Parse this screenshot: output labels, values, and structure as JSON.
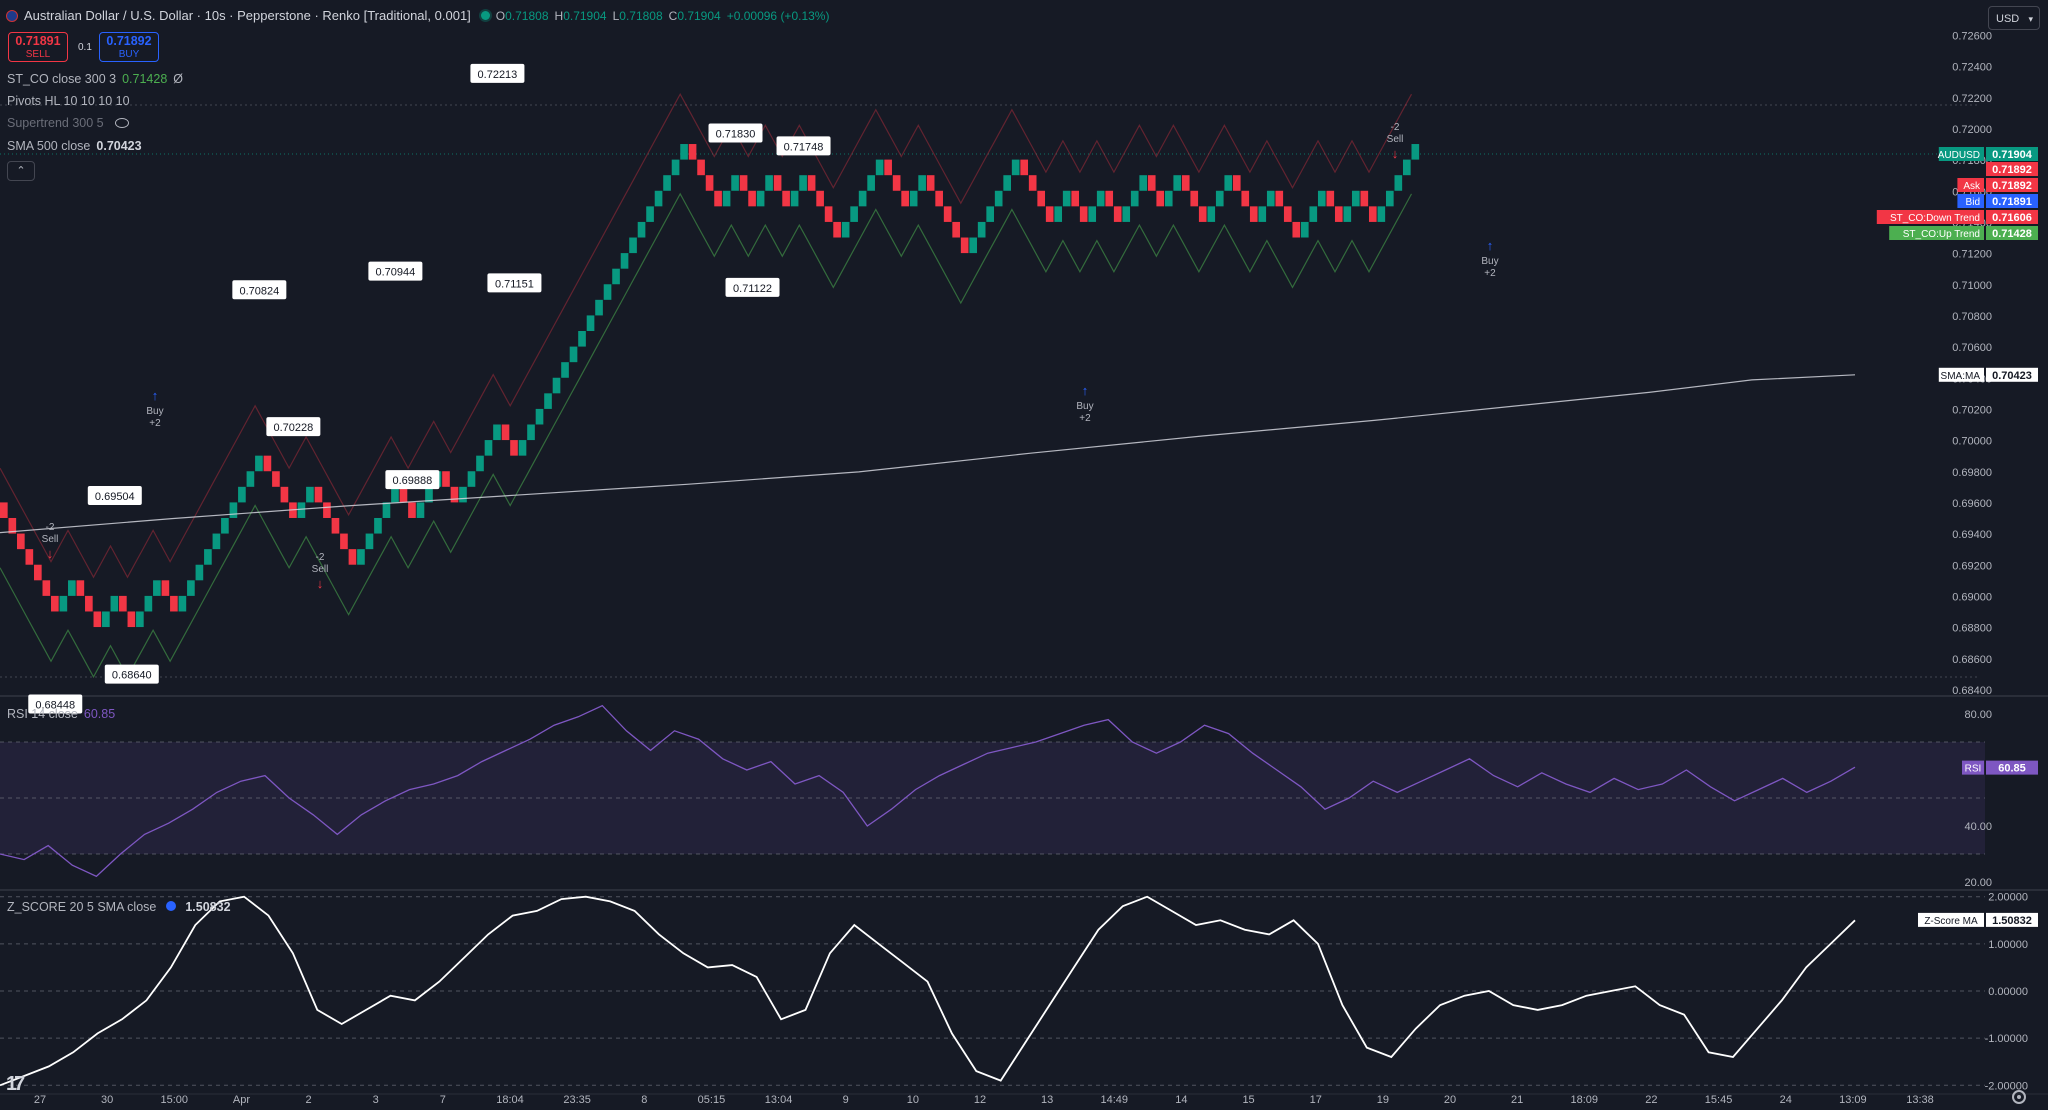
{
  "header": {
    "symbol_title": "Australian Dollar / U.S. Dollar · 10s · Pepperstone · Renko [Traditional, 0.001]",
    "ohlc": [
      {
        "key": "O",
        "value": "0.71808"
      },
      {
        "key": "H",
        "value": "0.71904"
      },
      {
        "key": "L",
        "value": "0.71808"
      },
      {
        "key": "C",
        "value": "0.71904"
      }
    ],
    "change": "+0.00096 (+0.13%)",
    "currency": "USD"
  },
  "trade": {
    "sell_price": "0.71891",
    "sell_label": "SELL",
    "quantity": "0.1",
    "buy_price": "0.71892",
    "buy_label": "BUY"
  },
  "indicators": {
    "st_co": {
      "name": "ST_CO close 300 3",
      "value": "0.71428",
      "extra": "Ø"
    },
    "pivots": {
      "name": "Pivots HL 10 10 10 10"
    },
    "supertrend": {
      "name": "Supertrend 300 5"
    },
    "sma": {
      "name": "SMA 500 close",
      "value": "0.70423"
    },
    "rsi": {
      "name": "RSI 14 close",
      "value": "60.85"
    },
    "zscore": {
      "name": "Z_SCORE 20 5 SMA close",
      "value": "1.50832"
    }
  },
  "colors": {
    "background": "#161a25",
    "bull": "#089981",
    "bear": "#f23645",
    "rsi_line": "#7e57c2",
    "sma_line": "#d1d4dc",
    "supertrend_up": "#4caf50",
    "supertrend_down": "#f23645"
  },
  "chart_data": [
    {
      "type": "renko",
      "title": "Australian Dollar / U.S. Dollar · 10s · Pepperstone · Renko [Traditional, 0.001]",
      "box_size": 0.001,
      "ylim": [
        0.684,
        0.727
      ],
      "y_ticks": [
        "0.72600",
        "0.72400",
        "0.72200",
        "0.72000",
        "0.71800",
        "0.71600",
        "0.71400",
        "0.71200",
        "0.71000",
        "0.70800",
        "0.70600",
        "0.70400",
        "0.70200",
        "0.70000",
        "0.69800",
        "0.69600",
        "0.69400",
        "0.69200",
        "0.69000",
        "0.68800",
        "0.68600",
        "0.68400"
      ],
      "bricks": [
        {
          "dir": "down",
          "count": 7
        },
        {
          "dir": "up",
          "count": 2
        },
        {
          "dir": "down",
          "count": 3
        },
        {
          "dir": "up",
          "count": 2
        },
        {
          "dir": "down",
          "count": 2
        },
        {
          "dir": "up",
          "count": 3
        },
        {
          "dir": "down",
          "count": 2
        },
        {
          "dir": "up",
          "count": 10
        },
        {
          "dir": "down",
          "count": 4
        },
        {
          "dir": "up",
          "count": 2
        },
        {
          "dir": "down",
          "count": 5
        },
        {
          "dir": "up",
          "count": 5
        },
        {
          "dir": "down",
          "count": 2
        },
        {
          "dir": "up",
          "count": 3
        },
        {
          "dir": "down",
          "count": 2
        },
        {
          "dir": "up",
          "count": 5
        },
        {
          "dir": "down",
          "count": 2
        },
        {
          "dir": "up",
          "count": 20
        },
        {
          "dir": "down",
          "count": 4
        },
        {
          "dir": "up",
          "count": 2
        },
        {
          "dir": "down",
          "count": 2
        },
        {
          "dir": "up",
          "count": 2
        },
        {
          "dir": "down",
          "count": 2
        },
        {
          "dir": "up",
          "count": 2
        },
        {
          "dir": "down",
          "count": 4
        },
        {
          "dir": "up",
          "count": 5
        },
        {
          "dir": "down",
          "count": 3
        },
        {
          "dir": "up",
          "count": 2
        },
        {
          "dir": "down",
          "count": 5
        },
        {
          "dir": "up",
          "count": 6
        },
        {
          "dir": "down",
          "count": 4
        },
        {
          "dir": "up",
          "count": 2
        },
        {
          "dir": "down",
          "count": 2
        },
        {
          "dir": "up",
          "count": 2
        },
        {
          "dir": "down",
          "count": 2
        },
        {
          "dir": "up",
          "count": 3
        },
        {
          "dir": "down",
          "count": 2
        },
        {
          "dir": "up",
          "count": 2
        },
        {
          "dir": "down",
          "count": 3
        },
        {
          "dir": "up",
          "count": 3
        },
        {
          "dir": "down",
          "count": 3
        },
        {
          "dir": "up",
          "count": 2
        },
        {
          "dir": "down",
          "count": 3
        },
        {
          "dir": "up",
          "count": 3
        },
        {
          "dir": "down",
          "count": 2
        },
        {
          "dir": "up",
          "count": 2
        },
        {
          "dir": "down",
          "count": 2
        },
        {
          "dir": "up",
          "count": 5
        }
      ],
      "sma_points": [
        [
          0,
          0.6941
        ],
        [
          25,
          0.695
        ],
        [
          50,
          0.6958
        ],
        [
          75,
          0.6965
        ],
        [
          100,
          0.6972
        ],
        [
          125,
          0.698
        ],
        [
          150,
          0.6992
        ],
        [
          175,
          0.7003
        ],
        [
          200,
          0.7013
        ],
        [
          220,
          0.7022
        ],
        [
          240,
          0.7031
        ],
        [
          255,
          0.7039
        ],
        [
          270,
          0.70423
        ]
      ],
      "pivots": [
        {
          "label": "0.69504",
          "position": "above"
        },
        {
          "label": "0.68448",
          "position": "below"
        },
        {
          "label": "0.68640",
          "position": "below"
        },
        {
          "label": "0.70824",
          "position": "above"
        },
        {
          "label": "0.70228",
          "position": "below"
        },
        {
          "label": "0.70944",
          "position": "above"
        },
        {
          "label": "0.69888",
          "position": "below"
        },
        {
          "label": "0.72213",
          "position": "above"
        },
        {
          "label": "0.71151",
          "position": "below"
        },
        {
          "label": "0.71830",
          "position": "above"
        },
        {
          "label": "0.71748",
          "position": "above"
        },
        {
          "label": "0.71122",
          "position": "below"
        }
      ],
      "signals": [
        {
          "type": "sell",
          "text": "-2",
          "label": "Sell"
        },
        {
          "type": "buy",
          "text": "+2",
          "label": "Buy"
        },
        {
          "type": "sell",
          "text": "-2",
          "label": "Sell"
        },
        {
          "type": "buy",
          "text": "+2",
          "label": "Buy"
        },
        {
          "type": "sell",
          "text": "-2",
          "label": "Sell"
        },
        {
          "type": "buy",
          "text": "+2",
          "label": "Buy"
        }
      ],
      "price_labels": [
        {
          "name": "AUDUSD",
          "value": "0.71904",
          "color": "#089981"
        },
        {
          "name": "",
          "value": "0.71892",
          "color": "#f23645"
        },
        {
          "name": "Ask",
          "value": "0.71892",
          "color": "#f23645"
        },
        {
          "name": "Bid",
          "value": "0.71891",
          "color": "#2962ff"
        },
        {
          "name": "ST_CO:Down Trend",
          "value": "0.71606",
          "color": "#f23645"
        },
        {
          "name": "ST_CO:Up Trend",
          "value": "0.71428",
          "color": "#4caf50"
        },
        {
          "name": "SMA:MA",
          "value": "0.70423",
          "color": "#ffffff"
        }
      ]
    },
    {
      "type": "line",
      "name": "RSI 14 close",
      "ylim": [
        20,
        85
      ],
      "y_ticks": [
        "80.00",
        "40.00",
        "20.00"
      ],
      "last_value": "60.85",
      "label": "RSI",
      "values": [
        30,
        28,
        33,
        26,
        22,
        30,
        37,
        41,
        46,
        52,
        56,
        58,
        50,
        44,
        37,
        44,
        49,
        53,
        55,
        58,
        63,
        67,
        71,
        76,
        79,
        83,
        74,
        67,
        74,
        71,
        64,
        60,
        63,
        55,
        58,
        52,
        40,
        46,
        53,
        58,
        62,
        66,
        68,
        70,
        73,
        76,
        78,
        70,
        66,
        70,
        76,
        73,
        66,
        60,
        54,
        46,
        50,
        56,
        52,
        56,
        60,
        64,
        58,
        54,
        59,
        55,
        52,
        57,
        53,
        55,
        60,
        54,
        49,
        53,
        57,
        52,
        56,
        61
      ]
    },
    {
      "type": "line",
      "name": "Z_SCORE 20 5 SMA close",
      "ylim": [
        -2.1,
        2.1
      ],
      "y_ticks": [
        "2.00000",
        "1.00000",
        "0.00000",
        "-1.00000",
        "-2.00000"
      ],
      "last_value": "1.50832",
      "label": "Z-Score MA",
      "values": [
        -2.0,
        -1.8,
        -1.6,
        -1.3,
        -0.9,
        -0.6,
        -0.2,
        0.5,
        1.4,
        1.9,
        2.0,
        1.6,
        0.8,
        -0.4,
        -0.7,
        -0.4,
        -0.1,
        -0.2,
        0.2,
        0.7,
        1.2,
        1.6,
        1.7,
        1.95,
        2.0,
        1.9,
        1.7,
        1.2,
        0.8,
        0.5,
        0.55,
        0.3,
        -0.6,
        -0.4,
        0.8,
        1.4,
        1.0,
        0.6,
        0.2,
        -0.9,
        -1.7,
        -1.9,
        -1.1,
        -0.3,
        0.5,
        1.3,
        1.8,
        2.0,
        1.7,
        1.4,
        1.5,
        1.3,
        1.2,
        1.5,
        1.0,
        -0.3,
        -1.2,
        -1.4,
        -0.8,
        -0.3,
        -0.1,
        0.0,
        -0.3,
        -0.4,
        -0.3,
        -0.1,
        0.0,
        0.1,
        -0.3,
        -0.5,
        -1.3,
        -1.4,
        -0.8,
        -0.2,
        0.5,
        1.0,
        1.5
      ]
    }
  ],
  "x_axis": {
    "ticks": [
      "27",
      "30",
      "15:00",
      "Apr",
      "2",
      "3",
      "7",
      "18:04",
      "23:35",
      "8",
      "05:15",
      "13:04",
      "9",
      "10",
      "12",
      "13",
      "14:49",
      "14",
      "15",
      "17",
      "19",
      "20",
      "21",
      "18:09",
      "22",
      "15:45",
      "24",
      "13:09",
      "13:38"
    ]
  }
}
